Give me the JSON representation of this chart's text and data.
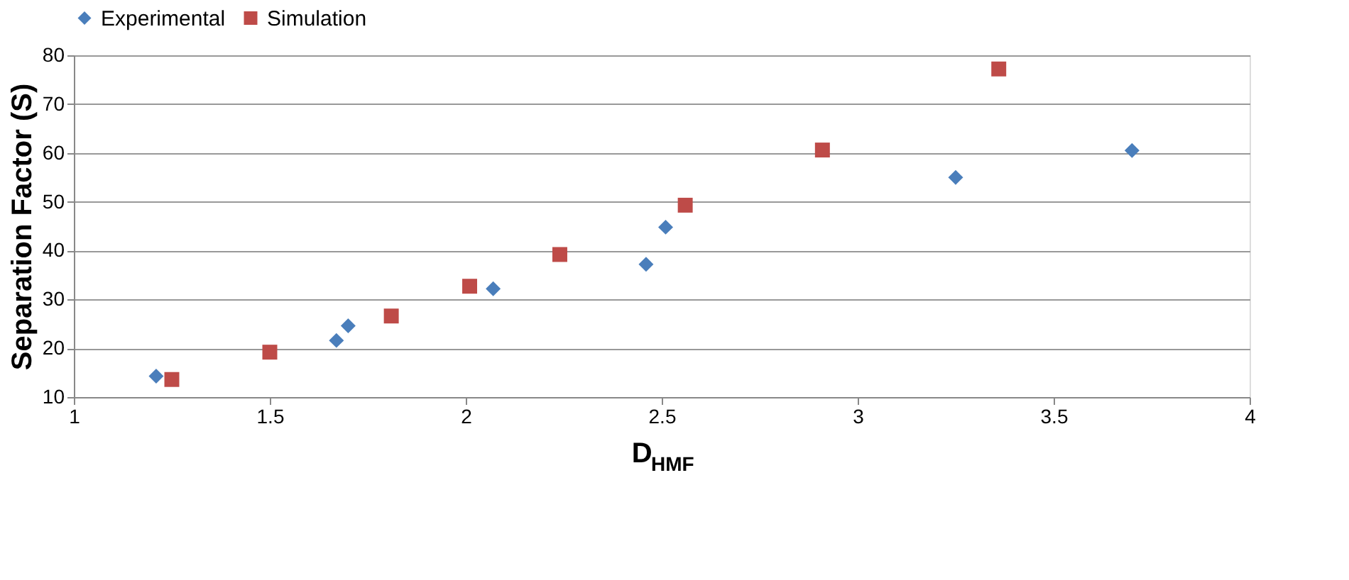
{
  "chart_data": {
    "type": "scatter",
    "xlabel": "D$_{HMF}$",
    "ylabel": "Separation Factor (S)",
    "xlim": [
      1,
      4
    ],
    "xticks": [
      1,
      1.5,
      2,
      2.5,
      3,
      3.5,
      4
    ],
    "ylim": [
      10,
      80
    ],
    "yticks": [
      10,
      20,
      30,
      40,
      50,
      60,
      70,
      80
    ],
    "grid": "y",
    "legend": "top",
    "series": [
      {
        "name": "Experimental",
        "color": "#4a7ebb",
        "marker": "diamond",
        "x": [
          1.21,
          1.67,
          1.7,
          2.07,
          2.46,
          2.51,
          3.25,
          3.7
        ],
        "values": [
          14.3,
          21.6,
          24.6,
          32.2,
          37.2,
          44.8,
          55.0,
          60.5
        ]
      },
      {
        "name": "Simulation",
        "color": "#be4b48",
        "marker": "square",
        "x": [
          1.25,
          1.5,
          1.81,
          2.01,
          2.24,
          2.56,
          2.91,
          3.36
        ],
        "values": [
          13.6,
          19.2,
          26.6,
          32.7,
          39.2,
          49.3,
          60.6,
          77.2
        ]
      }
    ]
  }
}
